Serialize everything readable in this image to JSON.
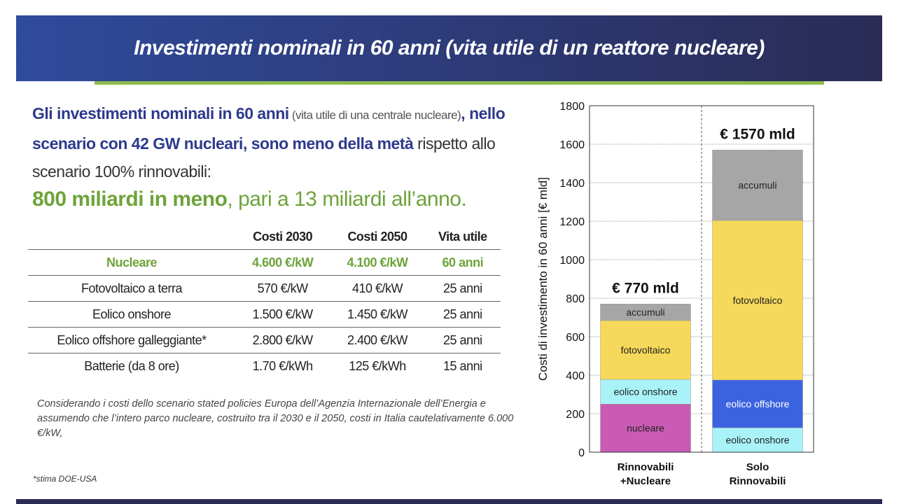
{
  "header": {
    "title": "Investimenti nominali in 60 anni (vita utile di un reattore nucleare)"
  },
  "intro": {
    "bold1": "Gli investimenti nominali in 60 anni",
    "small1": " (vita utile di una centrale nucleare)",
    "bold2": ", nello scenario con 42 GW nucleari, sono meno della metà",
    "normal1": " rispetto  allo scenario 100% rinnovabili:",
    "green_bold": "800 miliardi in meno",
    "green_normal": ", pari a 13 miliardi all’anno."
  },
  "table": {
    "headers": [
      "Costi 2030",
      "Costi 2050",
      "Vita utile"
    ],
    "rows": [
      [
        "Nucleare",
        "4.600 €/kW",
        "4.100  €/kW",
        "60 anni"
      ],
      [
        "Fotovoltaico a terra",
        "570 €/kW",
        "410 €/kW",
        "25 anni"
      ],
      [
        "Eolico onshore",
        "1.500 €/kW",
        "1.450 €/kW",
        "25 anni"
      ],
      [
        "Eolico offshore galleggiante*",
        "2.800 €/kW",
        "2.400 €/kW",
        "25 anni"
      ],
      [
        "Batterie (da 8 ore)",
        "1.70 €/kWh",
        "125 €/kWh",
        "15 anni"
      ]
    ]
  },
  "note": "Considerando i costi dello scenario stated policies Europa dell’Agenzia Internazionale dell’Energia e assumendo che l’intero parco nucleare, costruito tra il 2030 e il 2050, costi in Italia cautelativamente 6.000 €/kW,",
  "footnote": "*stima DOE-USA",
  "chart_data": {
    "type": "stacked_bar",
    "ylabel": "Costi di investimento in 60 anni [€ mld]",
    "categories": [
      "Rinnovabili\n+Nucleare",
      "Solo\nRinnovabili"
    ],
    "series": [
      {
        "name": "nucleare",
        "color": "#c95bb5",
        "values": [
          250,
          null
        ]
      },
      {
        "name": "eolico onshore",
        "color": "#a9f3f8",
        "values": [
          128,
          127
        ]
      },
      {
        "name": "eolico offshore",
        "color": "#3b63e0",
        "values": [
          null,
          248
        ]
      },
      {
        "name": "fotovoltaico",
        "color": "#f6d95b",
        "values": [
          306,
          829
        ]
      },
      {
        "name": "accumuli",
        "color": "#a6a6a6",
        "values": [
          86,
          366
        ]
      }
    ],
    "annotations": [
      "€ 770 mld",
      "€ 1570 mld"
    ],
    "ylim": [
      0,
      1800
    ],
    "yticks": [
      0,
      200,
      400,
      600,
      800,
      1000,
      1200,
      1400,
      1600,
      1800
    ],
    "grid": true
  }
}
